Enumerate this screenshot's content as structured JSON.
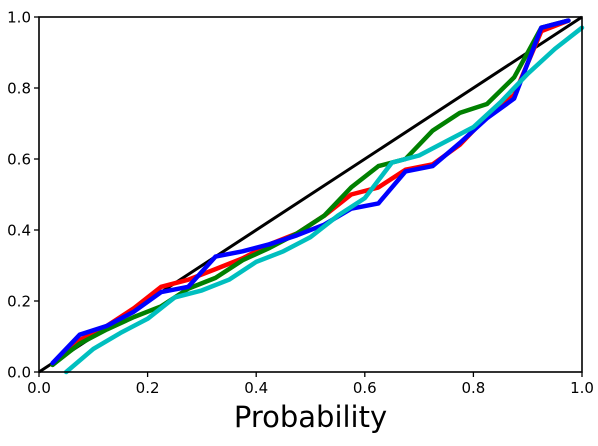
{
  "chart_data": {
    "type": "line",
    "title": "",
    "xlabel": "Probability",
    "ylabel": "",
    "xlim": [
      0.0,
      1.0
    ],
    "ylim": [
      0.0,
      1.0
    ],
    "grid": false,
    "x_ticks": [
      "0.0",
      "0.2",
      "0.4",
      "0.6",
      "0.8",
      "1.0"
    ],
    "y_ticks": [
      "0.0",
      "0.2",
      "0.4",
      "0.6",
      "0.8",
      "1.0"
    ],
    "reference_line": {
      "color": "#000000",
      "x": [
        0.0,
        1.0
      ],
      "y": [
        0.0,
        1.0
      ]
    },
    "series": [
      {
        "color": "#ff0000",
        "x": [
          0.025,
          0.075,
          0.125,
          0.175,
          0.225,
          0.275,
          0.325,
          0.375,
          0.425,
          0.475,
          0.525,
          0.575,
          0.625,
          0.675,
          0.725,
          0.775,
          0.825,
          0.875,
          0.925,
          0.975
        ],
        "y": [
          0.02,
          0.09,
          0.13,
          0.18,
          0.24,
          0.26,
          0.29,
          0.32,
          0.36,
          0.39,
          0.44,
          0.5,
          0.52,
          0.57,
          0.585,
          0.64,
          0.72,
          0.78,
          0.96,
          0.99
        ]
      },
      {
        "color": "#008000",
        "x": [
          0.025,
          0.075,
          0.125,
          0.175,
          0.225,
          0.275,
          0.325,
          0.375,
          0.425,
          0.475,
          0.525,
          0.575,
          0.625,
          0.675,
          0.725,
          0.775,
          0.825,
          0.875,
          0.925,
          0.975
        ],
        "y": [
          0.02,
          0.08,
          0.12,
          0.155,
          0.185,
          0.235,
          0.265,
          0.315,
          0.35,
          0.39,
          0.44,
          0.52,
          0.58,
          0.6,
          0.68,
          0.73,
          0.755,
          0.83,
          0.97,
          0.99
        ]
      },
      {
        "color": "#0000ff",
        "x": [
          0.025,
          0.075,
          0.125,
          0.175,
          0.225,
          0.275,
          0.325,
          0.375,
          0.425,
          0.475,
          0.525,
          0.575,
          0.625,
          0.675,
          0.725,
          0.775,
          0.825,
          0.875,
          0.925,
          0.975
        ],
        "y": [
          0.025,
          0.105,
          0.13,
          0.17,
          0.225,
          0.24,
          0.325,
          0.34,
          0.36,
          0.385,
          0.415,
          0.46,
          0.475,
          0.565,
          0.58,
          0.645,
          0.715,
          0.77,
          0.97,
          0.99
        ]
      },
      {
        "color": "#00bfbf",
        "x": [
          0.05,
          0.1,
          0.15,
          0.2,
          0.25,
          0.3,
          0.35,
          0.4,
          0.45,
          0.5,
          0.55,
          0.6,
          0.65,
          0.7,
          0.75,
          0.8,
          0.85,
          0.9,
          0.95,
          1.0
        ],
        "y": [
          0.0,
          0.065,
          0.11,
          0.15,
          0.21,
          0.23,
          0.26,
          0.31,
          0.34,
          0.38,
          0.44,
          0.49,
          0.59,
          0.61,
          0.65,
          0.69,
          0.76,
          0.84,
          0.91,
          0.97
        ]
      }
    ]
  }
}
